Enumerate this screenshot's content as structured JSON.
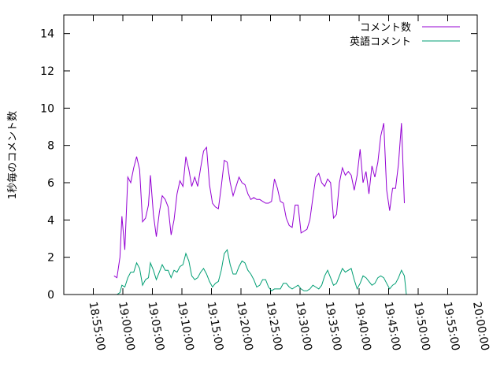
{
  "chart_data": {
    "type": "line",
    "title": "",
    "xlabel": "",
    "ylabel": "1秒毎のコメント数",
    "ylim": [
      0,
      15
    ],
    "yticks": [
      "0",
      "2",
      "4",
      "6",
      "8",
      "10",
      "12",
      "14"
    ],
    "xlim": [
      "18:50:00",
      "20:00:00"
    ],
    "xticks": [
      "18:55:00",
      "19:00:00",
      "19:05:00",
      "19:10:00",
      "19:15:00",
      "19:20:00",
      "19:25:00",
      "19:30:00",
      "19:35:00",
      "19:40:00",
      "19:45:00",
      "19:50:00",
      "19:55:00",
      "20:00:00"
    ],
    "grid": false,
    "legend_position": "top-right",
    "series": [
      {
        "name": "コメント数",
        "color": "#9400d3",
        "points": [
          [
            "18:58:30",
            1.0
          ],
          [
            "18:59:00",
            0.9
          ],
          [
            "18:59:30",
            2.0
          ],
          [
            "18:59:50",
            4.2
          ],
          [
            "19:00:20",
            2.4
          ],
          [
            "19:00:50",
            6.3
          ],
          [
            "19:01:20",
            6.0
          ],
          [
            "19:01:50",
            6.8
          ],
          [
            "19:02:20",
            7.4
          ],
          [
            "19:02:50",
            6.7
          ],
          [
            "19:03:20",
            3.9
          ],
          [
            "19:03:50",
            4.1
          ],
          [
            "19:04:20",
            4.8
          ],
          [
            "19:04:40",
            6.4
          ],
          [
            "19:05:10",
            4.3
          ],
          [
            "19:05:40",
            3.1
          ],
          [
            "19:06:10",
            4.4
          ],
          [
            "19:06:40",
            5.3
          ],
          [
            "19:07:10",
            5.1
          ],
          [
            "19:07:40",
            4.7
          ],
          [
            "19:08:10",
            3.2
          ],
          [
            "19:08:40",
            4.0
          ],
          [
            "19:09:10",
            5.4
          ],
          [
            "19:09:40",
            6.1
          ],
          [
            "19:10:10",
            5.8
          ],
          [
            "19:10:40",
            7.4
          ],
          [
            "19:11:10",
            6.7
          ],
          [
            "19:11:40",
            5.8
          ],
          [
            "19:12:10",
            6.3
          ],
          [
            "19:12:40",
            5.8
          ],
          [
            "19:13:10",
            6.8
          ],
          [
            "19:13:40",
            7.7
          ],
          [
            "19:14:10",
            7.9
          ],
          [
            "19:14:40",
            5.9
          ],
          [
            "19:15:10",
            4.9
          ],
          [
            "19:15:40",
            4.7
          ],
          [
            "19:16:10",
            4.6
          ],
          [
            "19:16:40",
            5.8
          ],
          [
            "19:17:10",
            7.2
          ],
          [
            "19:17:40",
            7.1
          ],
          [
            "19:18:10",
            6.0
          ],
          [
            "19:18:40",
            5.3
          ],
          [
            "19:19:10",
            5.8
          ],
          [
            "19:19:40",
            6.3
          ],
          [
            "19:20:10",
            6.0
          ],
          [
            "19:20:40",
            5.9
          ],
          [
            "19:21:10",
            5.4
          ],
          [
            "19:21:40",
            5.1
          ],
          [
            "19:22:10",
            5.2
          ],
          [
            "19:22:40",
            5.1
          ],
          [
            "19:23:10",
            5.1
          ],
          [
            "19:23:40",
            5.0
          ],
          [
            "19:24:10",
            4.9
          ],
          [
            "19:24:40",
            4.9
          ],
          [
            "19:25:10",
            5.0
          ],
          [
            "19:25:40",
            6.2
          ],
          [
            "19:26:10",
            5.7
          ],
          [
            "19:26:40",
            5.0
          ],
          [
            "19:27:10",
            4.9
          ],
          [
            "19:27:40",
            4.1
          ],
          [
            "19:28:10",
            3.7
          ],
          [
            "19:28:40",
            3.6
          ],
          [
            "19:29:10",
            4.8
          ],
          [
            "19:29:40",
            4.8
          ],
          [
            "19:30:10",
            3.3
          ],
          [
            "19:30:40",
            3.4
          ],
          [
            "19:31:10",
            3.5
          ],
          [
            "19:31:40",
            4.0
          ],
          [
            "19:32:10",
            5.2
          ],
          [
            "19:32:40",
            6.3
          ],
          [
            "19:33:10",
            6.5
          ],
          [
            "19:33:40",
            6.0
          ],
          [
            "19:34:10",
            5.8
          ],
          [
            "19:34:40",
            6.2
          ],
          [
            "19:35:10",
            6.0
          ],
          [
            "19:35:40",
            4.1
          ],
          [
            "19:36:10",
            4.3
          ],
          [
            "19:36:40",
            6.0
          ],
          [
            "19:37:10",
            6.8
          ],
          [
            "19:37:40",
            6.4
          ],
          [
            "19:38:10",
            6.6
          ],
          [
            "19:38:40",
            6.4
          ],
          [
            "19:39:10",
            5.6
          ],
          [
            "19:39:40",
            6.4
          ],
          [
            "19:40:10",
            7.8
          ],
          [
            "19:40:40",
            6.0
          ],
          [
            "19:41:10",
            6.6
          ],
          [
            "19:41:40",
            5.4
          ],
          [
            "19:42:10",
            6.9
          ],
          [
            "19:42:40",
            6.3
          ],
          [
            "19:43:10",
            7.1
          ],
          [
            "19:43:40",
            8.5
          ],
          [
            "19:44:10",
            9.2
          ],
          [
            "19:44:40",
            5.6
          ],
          [
            "19:45:10",
            4.5
          ],
          [
            "19:45:40",
            5.7
          ],
          [
            "19:46:10",
            5.7
          ],
          [
            "19:46:40",
            7.0
          ],
          [
            "19:47:10",
            9.2
          ],
          [
            "19:47:40",
            4.9
          ]
        ]
      },
      {
        "name": "英語コメント",
        "color": "#009e73",
        "points": [
          [
            "18:58:30",
            0.0
          ],
          [
            "18:59:00",
            0.0
          ],
          [
            "18:59:30",
            0.1
          ],
          [
            "18:59:50",
            0.5
          ],
          [
            "19:00:20",
            0.4
          ],
          [
            "19:00:50",
            0.9
          ],
          [
            "19:01:20",
            1.2
          ],
          [
            "19:01:50",
            1.2
          ],
          [
            "19:02:20",
            1.7
          ],
          [
            "19:02:50",
            1.4
          ],
          [
            "19:03:20",
            0.5
          ],
          [
            "19:03:50",
            0.8
          ],
          [
            "19:04:20",
            0.9
          ],
          [
            "19:04:40",
            1.7
          ],
          [
            "19:05:10",
            1.3
          ],
          [
            "19:05:40",
            0.8
          ],
          [
            "19:06:10",
            1.2
          ],
          [
            "19:06:40",
            1.6
          ],
          [
            "19:07:10",
            1.3
          ],
          [
            "19:07:40",
            1.3
          ],
          [
            "19:08:10",
            0.9
          ],
          [
            "19:08:40",
            1.3
          ],
          [
            "19:09:10",
            1.2
          ],
          [
            "19:09:40",
            1.5
          ],
          [
            "19:10:10",
            1.6
          ],
          [
            "19:10:40",
            2.2
          ],
          [
            "19:11:10",
            1.8
          ],
          [
            "19:11:40",
            1.0
          ],
          [
            "19:12:10",
            0.8
          ],
          [
            "19:12:40",
            0.9
          ],
          [
            "19:13:10",
            1.2
          ],
          [
            "19:13:40",
            1.4
          ],
          [
            "19:14:10",
            1.1
          ],
          [
            "19:14:40",
            0.7
          ],
          [
            "19:15:10",
            0.4
          ],
          [
            "19:15:40",
            0.6
          ],
          [
            "19:16:10",
            0.7
          ],
          [
            "19:16:40",
            1.3
          ],
          [
            "19:17:10",
            2.2
          ],
          [
            "19:17:40",
            2.4
          ],
          [
            "19:18:10",
            1.6
          ],
          [
            "19:18:40",
            1.1
          ],
          [
            "19:19:10",
            1.1
          ],
          [
            "19:19:40",
            1.5
          ],
          [
            "19:20:10",
            1.8
          ],
          [
            "19:20:40",
            1.7
          ],
          [
            "19:21:10",
            1.3
          ],
          [
            "19:21:40",
            1.1
          ],
          [
            "19:22:10",
            0.8
          ],
          [
            "19:22:40",
            0.4
          ],
          [
            "19:23:10",
            0.5
          ],
          [
            "19:23:40",
            0.8
          ],
          [
            "19:24:10",
            0.8
          ],
          [
            "19:24:40",
            0.4
          ],
          [
            "19:25:10",
            0.2
          ],
          [
            "19:25:40",
            0.3
          ],
          [
            "19:26:10",
            0.3
          ],
          [
            "19:26:40",
            0.3
          ],
          [
            "19:27:10",
            0.6
          ],
          [
            "19:27:40",
            0.6
          ],
          [
            "19:28:10",
            0.4
          ],
          [
            "19:28:40",
            0.3
          ],
          [
            "19:29:10",
            0.4
          ],
          [
            "19:29:40",
            0.5
          ],
          [
            "19:30:10",
            0.3
          ],
          [
            "19:30:40",
            0.2
          ],
          [
            "19:31:10",
            0.2
          ],
          [
            "19:31:40",
            0.3
          ],
          [
            "19:32:10",
            0.5
          ],
          [
            "19:32:40",
            0.4
          ],
          [
            "19:33:10",
            0.3
          ],
          [
            "19:33:40",
            0.5
          ],
          [
            "19:34:10",
            1.0
          ],
          [
            "19:34:40",
            1.3
          ],
          [
            "19:35:10",
            0.9
          ],
          [
            "19:35:40",
            0.5
          ],
          [
            "19:36:10",
            0.6
          ],
          [
            "19:36:40",
            1.0
          ],
          [
            "19:37:10",
            1.4
          ],
          [
            "19:37:40",
            1.2
          ],
          [
            "19:38:10",
            1.3
          ],
          [
            "19:38:40",
            1.4
          ],
          [
            "19:39:10",
            0.8
          ],
          [
            "19:39:40",
            0.3
          ],
          [
            "19:40:10",
            0.6
          ],
          [
            "19:40:40",
            1.0
          ],
          [
            "19:41:10",
            0.9
          ],
          [
            "19:41:40",
            0.7
          ],
          [
            "19:42:10",
            0.5
          ],
          [
            "19:42:40",
            0.6
          ],
          [
            "19:43:10",
            0.9
          ],
          [
            "19:43:40",
            1.0
          ],
          [
            "19:44:10",
            0.9
          ],
          [
            "19:44:40",
            0.6
          ],
          [
            "19:45:10",
            0.3
          ],
          [
            "19:45:40",
            0.5
          ],
          [
            "19:46:10",
            0.6
          ],
          [
            "19:46:40",
            0.9
          ],
          [
            "19:47:10",
            1.3
          ],
          [
            "19:47:40",
            1.0
          ],
          [
            "19:48:00",
            0.0
          ]
        ]
      }
    ]
  }
}
